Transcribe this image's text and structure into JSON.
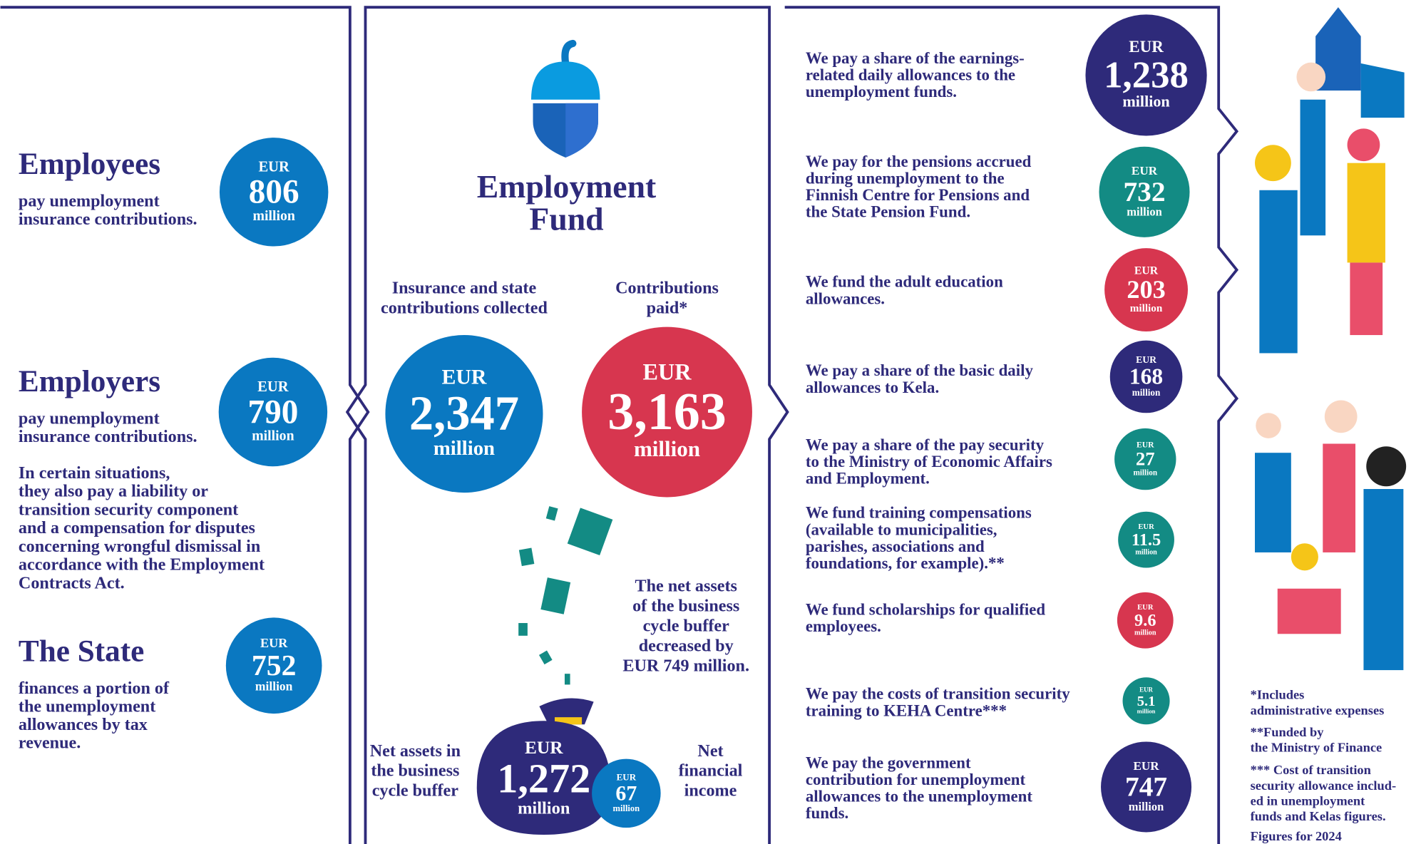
{
  "sources": [
    {
      "name": "Employees",
      "text": [
        "pay unemployment",
        "insurance contributions."
      ],
      "currency": "EUR",
      "amount": "806",
      "unit": "million",
      "color": "#0a78c1"
    },
    {
      "name": "Employers",
      "text": [
        "pay unemployment",
        "insurance contributions."
      ],
      "note": [
        "In certain situations,",
        "they also pay a liability or",
        "transition security component",
        "and a compensation for disputes",
        "concerning wrongful dismissal in",
        "accordance with the Employment",
        "Contracts Act."
      ],
      "currency": "EUR",
      "amount": "790",
      "unit": "million",
      "color": "#0a78c1"
    },
    {
      "name": "The State",
      "text": [
        "finances a portion of",
        "the unemployment",
        "allowances by tax",
        "revenue."
      ],
      "currency": "EUR",
      "amount": "752",
      "unit": "million",
      "color": "#0a78c1"
    }
  ],
  "fund": {
    "title": [
      "Employment",
      "Fund"
    ],
    "collected": {
      "label": [
        "Insurance and state",
        "contributions collected"
      ],
      "currency": "EUR",
      "amount": "2,347",
      "unit": "million",
      "color": "#0a78c1"
    },
    "paid": {
      "label": [
        "Contributions",
        "paid*"
      ],
      "currency": "EUR",
      "amount": "3,163",
      "unit": "million",
      "color": "#d7364f"
    },
    "buffer_note": [
      "The net assets",
      "of the business",
      "cycle buffer",
      "decreased by",
      "EUR 749 million."
    ],
    "net_assets": {
      "label": [
        "Net assets in",
        "the business",
        "cycle buffer"
      ],
      "currency": "EUR",
      "amount": "1,272",
      "unit": "million",
      "color": "#2e2a7a"
    },
    "financial_income": {
      "label": [
        "Net",
        "financial",
        "income"
      ],
      "currency": "EUR",
      "amount": "67",
      "unit": "million",
      "color": "#0a78c1"
    }
  },
  "expenditures": [
    {
      "text": [
        "We pay a share of the earnings-",
        "related daily allowances to the",
        "unemployment funds."
      ],
      "currency": "EUR",
      "amount": "1,238",
      "unit": "million",
      "color": "#2e2a7a"
    },
    {
      "text": [
        "We pay for the pensions accrued",
        "during unemployment to the",
        "Finnish Centre for Pensions and",
        "the State Pension Fund."
      ],
      "currency": "EUR",
      "amount": "732",
      "unit": "million",
      "color": "#138b84"
    },
    {
      "text": [
        "We fund the adult education",
        "allowances."
      ],
      "currency": "EUR",
      "amount": "203",
      "unit": "million",
      "color": "#d7364f"
    },
    {
      "text": [
        "We pay a share of the basic daily",
        "allowances to Kela."
      ],
      "currency": "EUR",
      "amount": "168",
      "unit": "million",
      "color": "#2e2a7a"
    },
    {
      "text": [
        "We pay a share of the pay security",
        "to the Ministry of Economic Affairs",
        "and Employment."
      ],
      "currency": "EUR",
      "amount": "27",
      "unit": "million",
      "color": "#138b84"
    },
    {
      "text": [
        "We fund training compensations",
        "(available to municipalities,",
        "parishes, associations and",
        "foundations, for example).**"
      ],
      "currency": "EUR",
      "amount": "11.5",
      "unit": "million",
      "color": "#138b84"
    },
    {
      "text": [
        "We fund scholarships for qualified",
        "employees."
      ],
      "currency": "EUR",
      "amount": "9.6",
      "unit": "million",
      "color": "#d7364f"
    },
    {
      "text": [
        "We pay the costs of transition security",
        "training to KEHA Centre***"
      ],
      "currency": "EUR",
      "amount": "5.1",
      "unit": "million",
      "color": "#138b84"
    },
    {
      "text": [
        "We pay the government",
        "contribution for unemployment",
        "allowances to the unemployment",
        "funds."
      ],
      "currency": "EUR",
      "amount": "747",
      "unit": "million",
      "color": "#2e2a7a"
    }
  ],
  "footnotes": [
    [
      "*Includes",
      "administrative expenses"
    ],
    [
      "**Funded by",
      "the Ministry of Finance"
    ],
    [
      "*** Cost of transition",
      "security allowance includ-",
      "ed in unemployment",
      "funds and Kelas figures."
    ],
    [
      "Figures for 2024"
    ]
  ]
}
